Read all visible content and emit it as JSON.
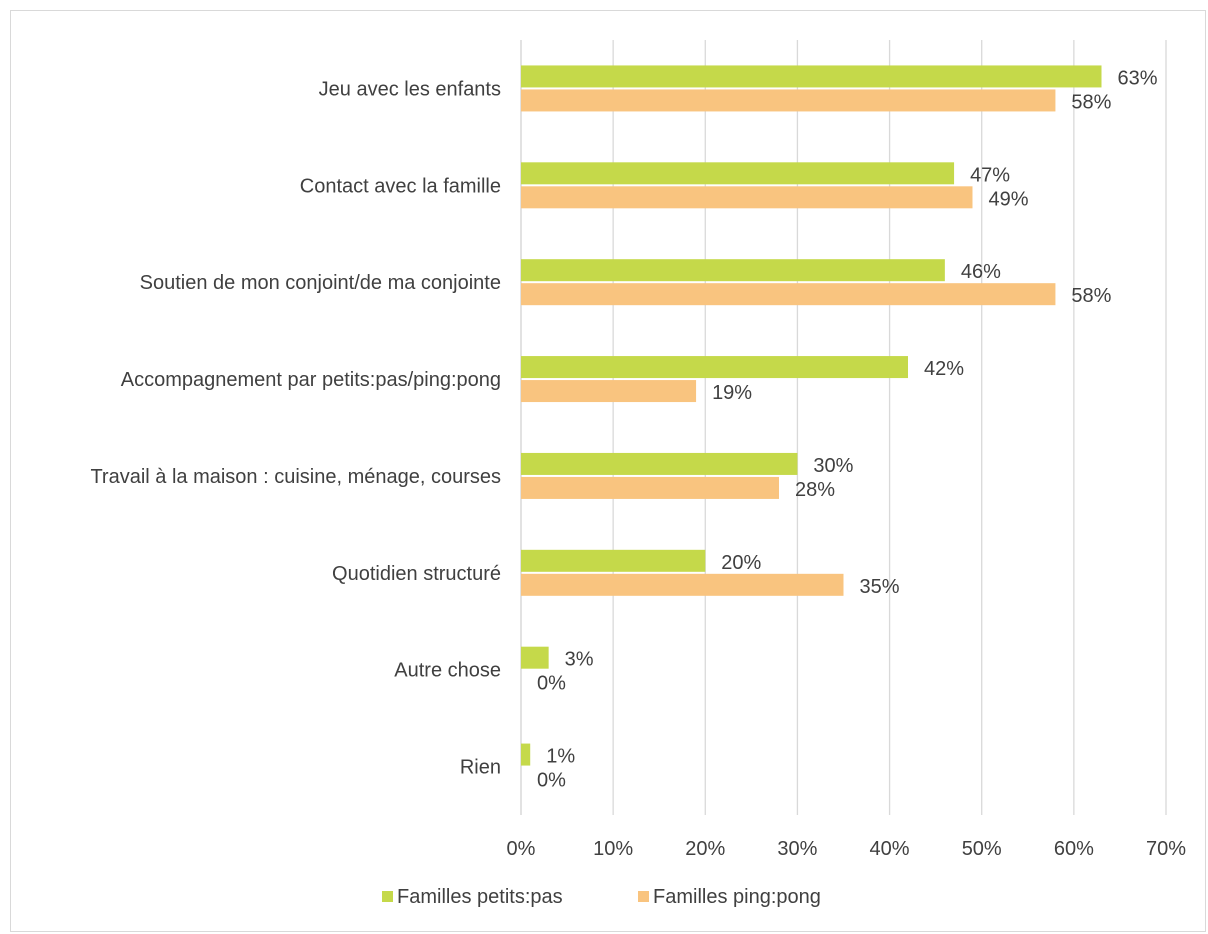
{
  "chart_data": {
    "type": "bar",
    "orientation": "horizontal",
    "title": "",
    "xlabel": "",
    "ylabel": "",
    "xlim": [
      0,
      70
    ],
    "ticks": [
      0,
      10,
      20,
      30,
      40,
      50,
      60,
      70
    ],
    "tick_labels": [
      "0%",
      "10%",
      "20%",
      "30%",
      "40%",
      "50%",
      "60%",
      "70%"
    ],
    "grid": true,
    "legend_position": "bottom",
    "categories": [
      "Jeu avec les enfants",
      "Contact avec la famille",
      "Soutien de mon conjoint/de ma conjointe",
      "Accompagnement par petits:pas/ping:pong",
      "Travail à la maison : cuisine, ménage, courses",
      "Quotidien structuré",
      "Autre chose",
      "Rien"
    ],
    "series": [
      {
        "name": "Familles petits:pas",
        "color": "#c5d94a",
        "values": [
          63,
          47,
          46,
          42,
          30,
          20,
          3,
          1
        ],
        "labels": [
          "63%",
          "47%",
          "46%",
          "42%",
          "30%",
          "20%",
          "3%",
          "1%"
        ]
      },
      {
        "name": "Familles ping:pong",
        "color": "#f9c47f",
        "values": [
          58,
          49,
          58,
          19,
          28,
          35,
          0,
          0
        ],
        "labels": [
          "58%",
          "49%",
          "58%",
          "19%",
          "28%",
          "35%",
          "0%",
          "0%"
        ]
      }
    ]
  }
}
